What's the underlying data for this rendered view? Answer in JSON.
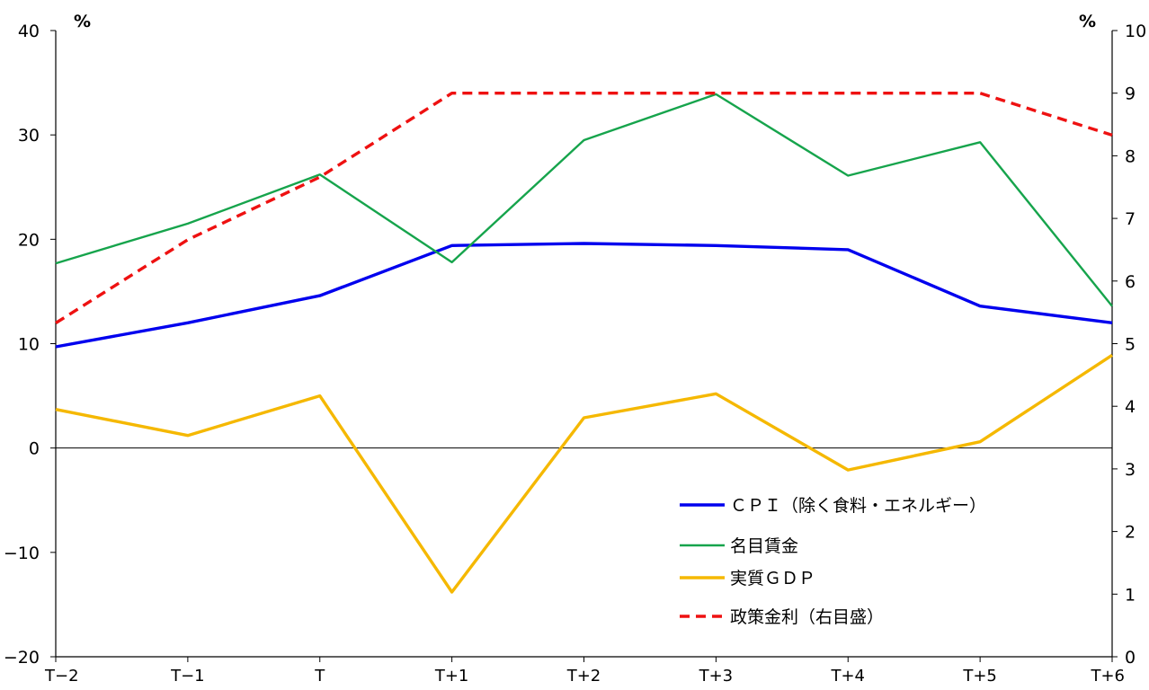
{
  "chart_data": {
    "type": "line",
    "categories": [
      "T−2",
      "T−1",
      "T",
      "T+1",
      "T+2",
      "T+3",
      "T+4",
      "T+5",
      "T+6"
    ],
    "left_axis": {
      "unit": "%",
      "ylim": [
        -20,
        40
      ],
      "ticks": [
        -20,
        -10,
        0,
        10,
        20,
        30,
        40
      ],
      "tick_labels": [
        "−20",
        "−10",
        "0",
        "10",
        "20",
        "30",
        "40"
      ]
    },
    "right_axis": {
      "unit": "%",
      "ylim": [
        0,
        10
      ],
      "ticks": [
        0,
        1,
        2,
        3,
        4,
        5,
        6,
        7,
        8,
        9,
        10
      ],
      "tick_labels": [
        "0",
        "1",
        "2",
        "3",
        "4",
        "5",
        "6",
        "7",
        "8",
        "9",
        "10"
      ]
    },
    "series": [
      {
        "name": "ＣＰＩ（除く食料・エネルギー）",
        "axis": "left",
        "color": "#0000ee",
        "style": "solid",
        "values": [
          9.7,
          12.0,
          14.6,
          19.4,
          19.6,
          19.4,
          19.0,
          13.6,
          12.0
        ]
      },
      {
        "name": "名目賃金",
        "axis": "left",
        "color": "#16a44c",
        "style": "solid",
        "values": [
          17.7,
          21.5,
          26.2,
          17.8,
          29.5,
          33.9,
          26.1,
          29.3,
          13.6
        ]
      },
      {
        "name": "実質ＧＤＰ",
        "axis": "left",
        "color": "#f5b800",
        "style": "solid",
        "values": [
          3.7,
          1.2,
          5.0,
          -13.8,
          2.9,
          5.2,
          -2.1,
          0.6,
          8.9
        ]
      },
      {
        "name": "政策金利（右目盛）",
        "axis": "right",
        "color": "#ee1111",
        "style": "dashed",
        "values": [
          5.33,
          6.66,
          7.66,
          9.0,
          9.0,
          9.0,
          9.0,
          9.0,
          8.33
        ]
      }
    ],
    "legend_position": "bottom-right",
    "grid": false
  }
}
